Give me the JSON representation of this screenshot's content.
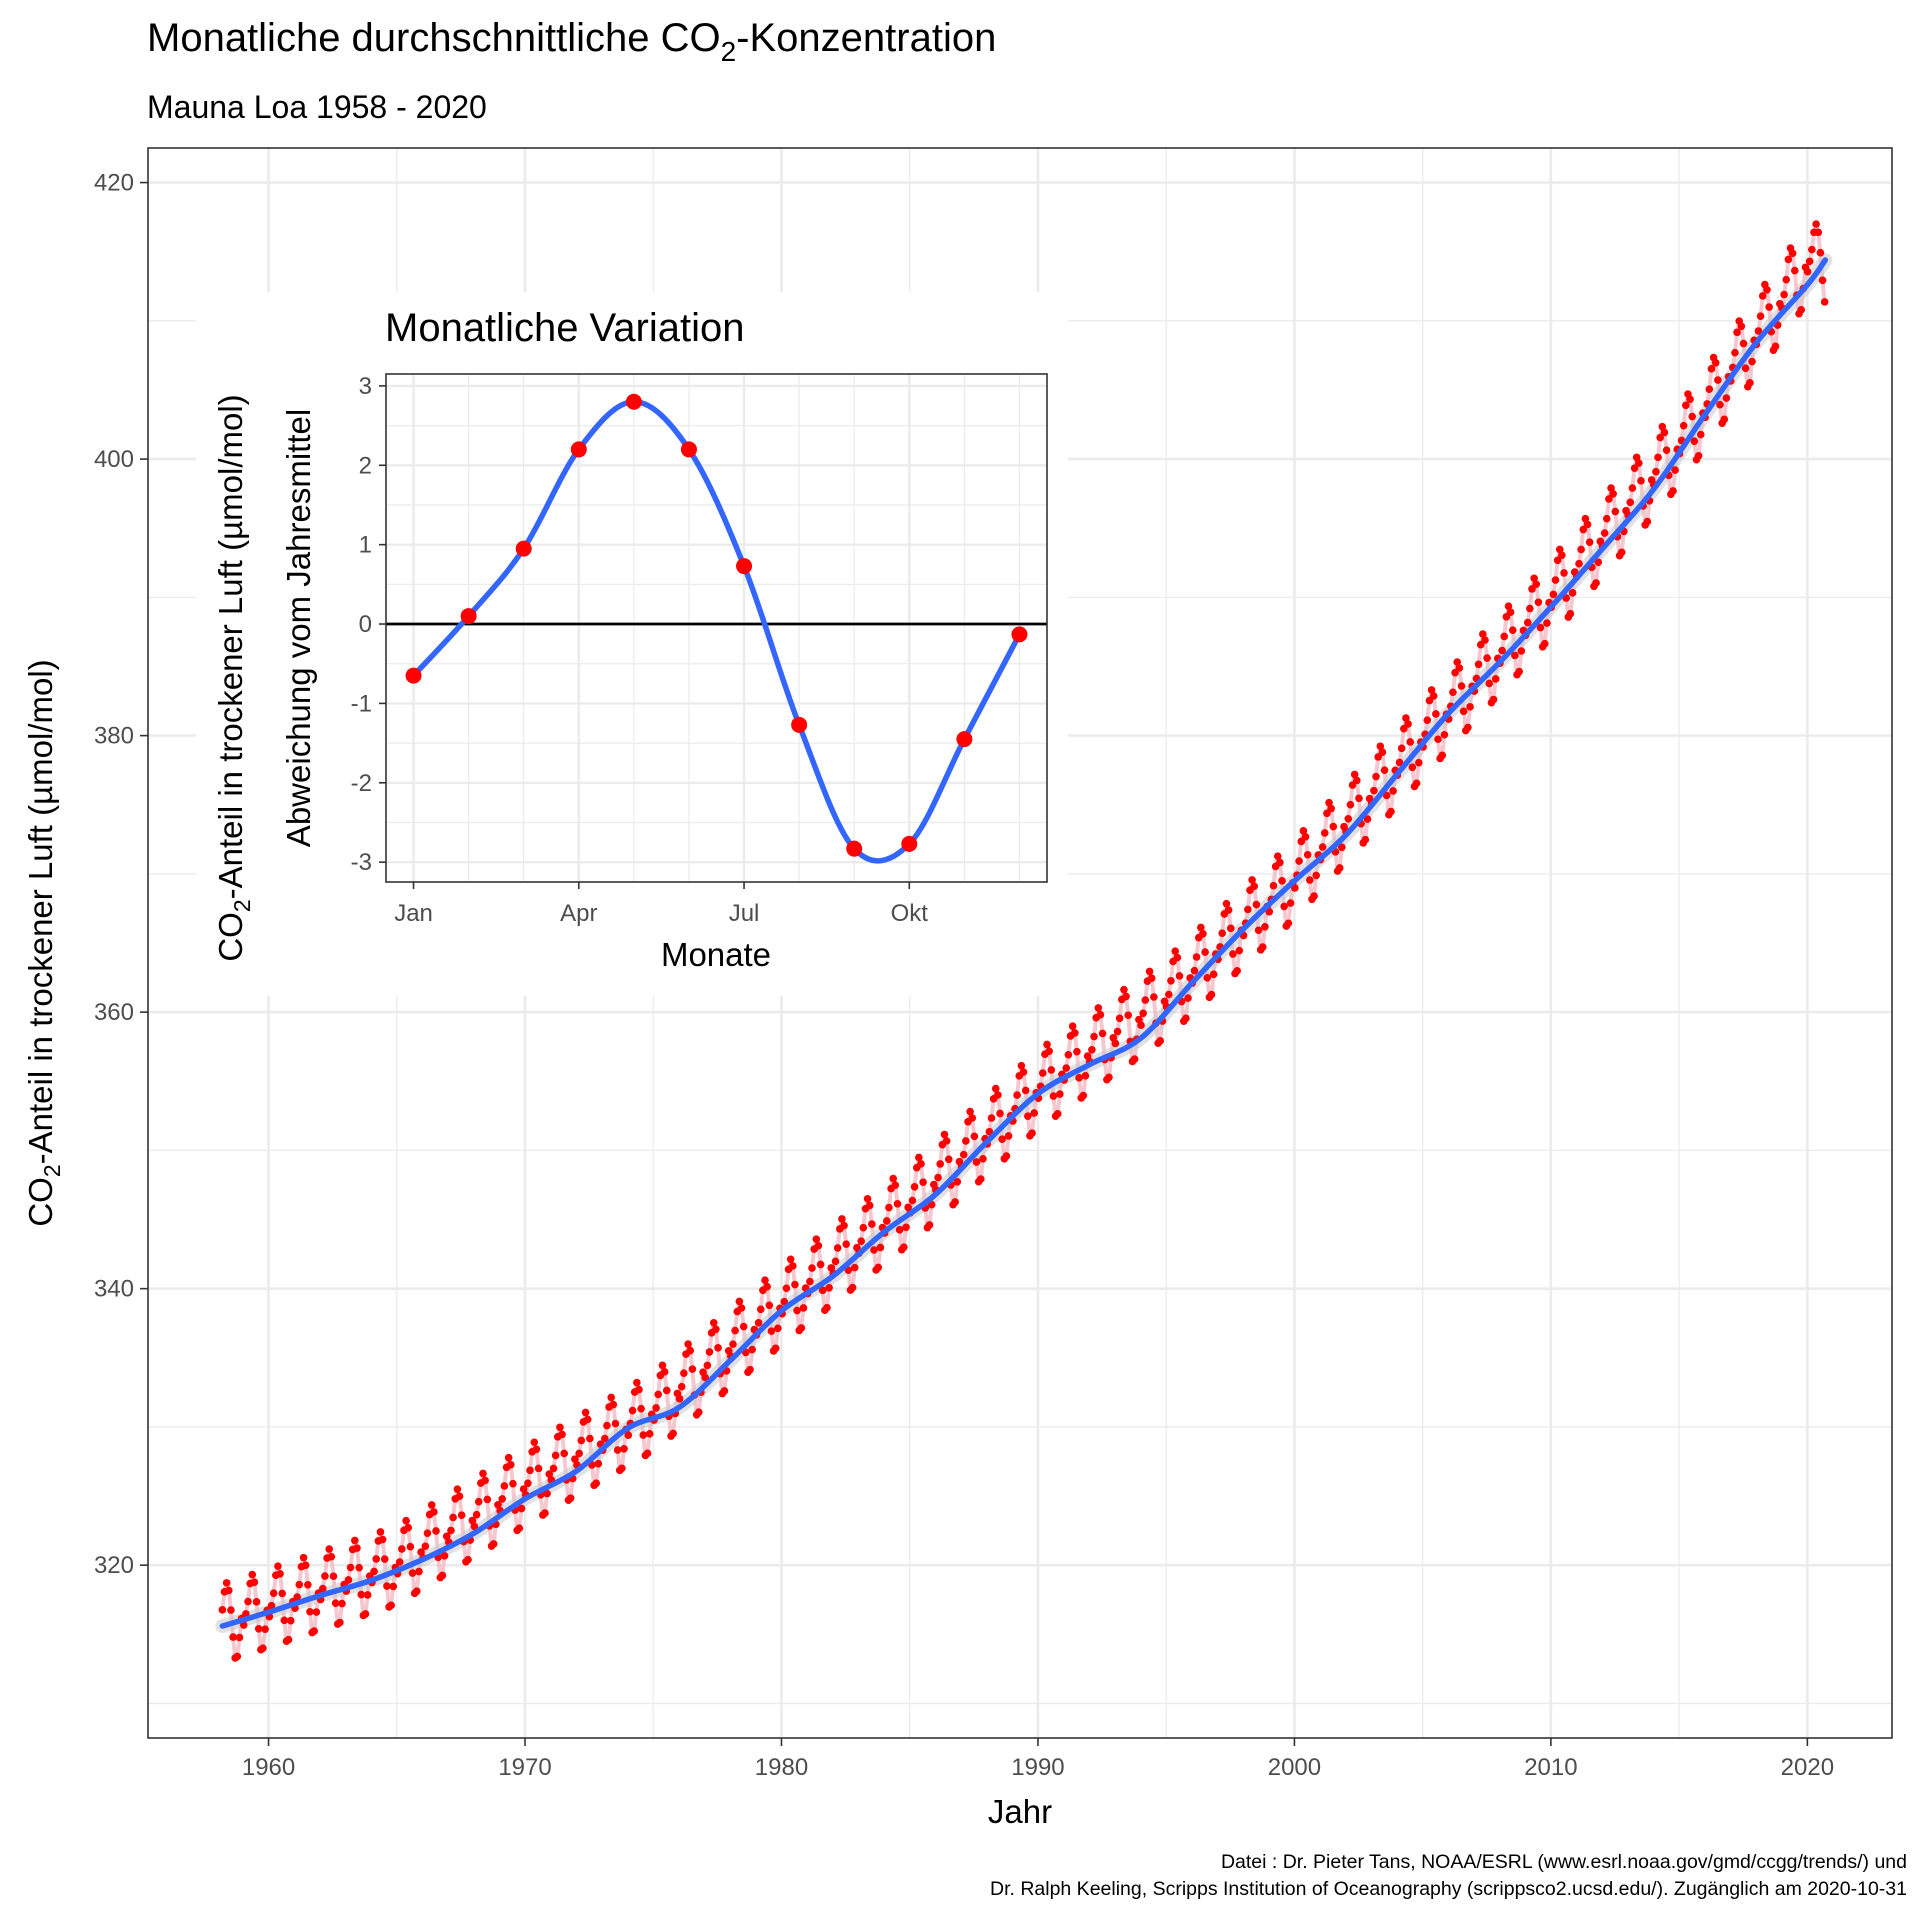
{
  "title": {
    "prefix": "Monatliche durchschnittliche CO",
    "subscript": "2",
    "suffix": "-Konzentration"
  },
  "subtitle": "Mauna Loa 1958 - 2020",
  "source_line1": "Datei : Dr. Pieter Tans, NOAA/ESRL (www.esrl.noaa.gov/gmd/ccgg/trends/) und",
  "source_line2": "Dr. Ralph Keeling, Scripps Institution of Oceanography (scrippsco2.ucsd.edu/). Zugänglich am 2020-10-31",
  "colors": {
    "points": "#ff0000",
    "trend": "#3366ff",
    "ribbon": "#f4b4bf",
    "grid": "#ebebeb",
    "panel_border": "#333333"
  },
  "chart_data": [
    {
      "id": "main",
      "type": "line",
      "xlabel": "Jahr",
      "ylabel": {
        "prefix": "CO",
        "subscript": "2",
        "suffix": "-Anteil in trockener Luft (µmol/mol)"
      },
      "xlim": [
        1955.3,
        2023.3
      ],
      "ylim": [
        307.5,
        422.5
      ],
      "x_ticks": [
        1960,
        1970,
        1980,
        1990,
        2000,
        2010,
        2020
      ],
      "y_ticks": [
        320,
        340,
        360,
        380,
        400,
        420
      ],
      "grid": true,
      "series": [
        {
          "kind": "monthly-points",
          "start": 1958.2,
          "end": 2020.7,
          "step": 0.0833,
          "seasonal_amplitude": 3.0,
          "annual_trend": [
            {
              "year": 1958,
              "value": 315.7
            },
            {
              "year": 1960,
              "value": 316.9
            },
            {
              "year": 1965,
              "value": 320.0
            },
            {
              "year": 1970,
              "value": 325.7
            },
            {
              "year": 1975,
              "value": 331.1
            },
            {
              "year": 1980,
              "value": 338.8
            },
            {
              "year": 1985,
              "value": 346.1
            },
            {
              "year": 1990,
              "value": 354.4
            },
            {
              "year": 1995,
              "value": 361.0
            },
            {
              "year": 2000,
              "value": 369.6
            },
            {
              "year": 2005,
              "value": 379.8
            },
            {
              "year": 2010,
              "value": 389.9
            },
            {
              "year": 2015,
              "value": 401.0
            },
            {
              "year": 2020,
              "value": 414.2
            }
          ]
        },
        {
          "kind": "smooth-trend",
          "x": [
            1958.2,
            1960,
            1962,
            1964,
            1966,
            1968,
            1970,
            1972,
            1974,
            1976,
            1978,
            1980,
            1982,
            1984,
            1986,
            1988,
            1990,
            1992,
            1994,
            1996,
            1998,
            2000,
            2002,
            2004,
            2006,
            2008,
            2010,
            2012,
            2014,
            2016,
            2018,
            2020,
            2020.7
          ],
          "y": [
            315.6,
            316.6,
            317.8,
            318.9,
            320.4,
            322.3,
            324.8,
            326.8,
            329.9,
            331.4,
            334.8,
            338.4,
            340.9,
            344.1,
            346.8,
            350.6,
            354.1,
            356.2,
            358.1,
            362.1,
            366.0,
            369.5,
            372.8,
            377.2,
            381.6,
            385.3,
            389.3,
            393.5,
            397.8,
            403.2,
            408.4,
            412.6,
            414.4
          ]
        }
      ]
    },
    {
      "id": "inset",
      "type": "line",
      "title": "Monatliche Variation",
      "xlabel": "Monate",
      "ylabel": {
        "prefix": "CO",
        "subscript": "2",
        "suffix": "-Anteil in trockener Luft (µmol/mol)",
        "line2": "Abweichung vom Jahresmittel"
      },
      "xlim": [
        0.5,
        12.5
      ],
      "ylim": [
        -3.25,
        3.15
      ],
      "x_ticks": [
        {
          "value": 1,
          "label": "Jan"
        },
        {
          "value": 4,
          "label": "Apr"
        },
        {
          "value": 7,
          "label": "Jul"
        },
        {
          "value": 10,
          "label": "Okt"
        }
      ],
      "y_ticks": [
        -3,
        -2,
        -1,
        0,
        1,
        2,
        3
      ],
      "grid": true,
      "x": [
        1,
        2,
        3,
        4,
        5,
        6,
        7,
        8,
        9,
        10,
        11,
        12
      ],
      "y": [
        -0.65,
        0.1,
        0.95,
        2.2,
        2.8,
        2.2,
        0.73,
        -1.27,
        -2.83,
        -2.77,
        -1.45,
        -0.13
      ]
    }
  ]
}
